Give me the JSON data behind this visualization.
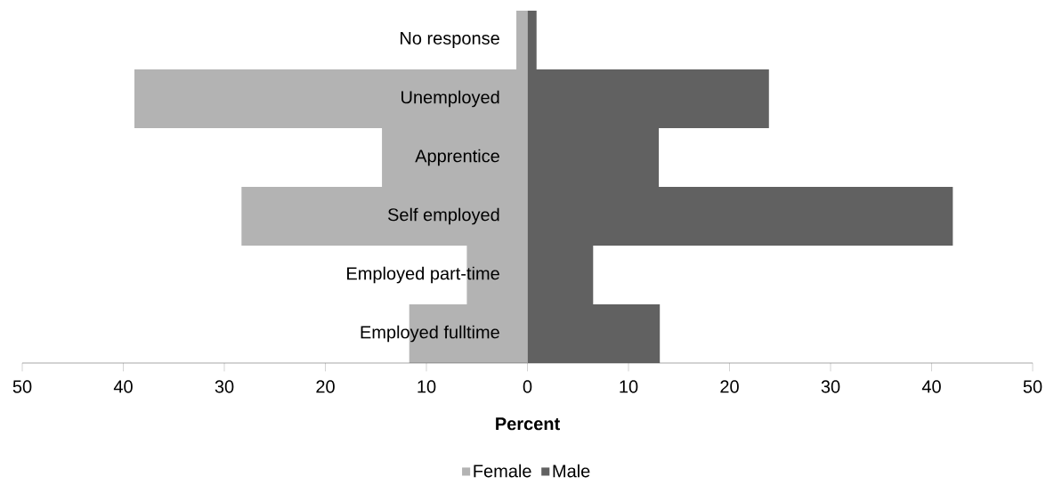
{
  "chart_data": {
    "type": "bar",
    "orientation": "horizontal",
    "stacked": true,
    "categories": [
      "No response",
      "Unemployed",
      "Apprentice",
      "Self employed",
      "Employed part-time",
      "Employed fulltime"
    ],
    "series": [
      {
        "name": "Female",
        "color": "#b3b3b3",
        "values": [
          -1.1,
          -38.9,
          -14.4,
          -28.3,
          -6.0,
          -11.7
        ]
      },
      {
        "name": "Male",
        "color": "#616161",
        "values": [
          0.9,
          23.9,
          13.0,
          42.1,
          6.5,
          13.1
        ]
      }
    ],
    "xlabel": "Percent",
    "xlim": [
      -50,
      50
    ],
    "xticks": [
      {
        "value": -50,
        "label": "50"
      },
      {
        "value": -40,
        "label": "40"
      },
      {
        "value": -30,
        "label": "30"
      },
      {
        "value": -20,
        "label": "20"
      },
      {
        "value": -10,
        "label": "10"
      },
      0,
      10,
      20,
      30,
      40,
      50
    ],
    "grid": false,
    "legend": "bottom"
  }
}
